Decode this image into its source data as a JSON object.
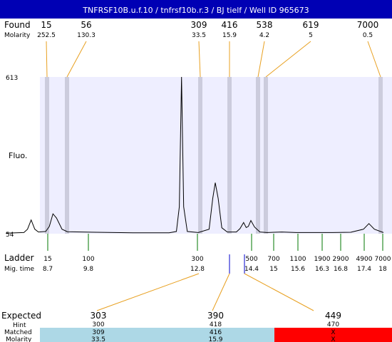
{
  "header": {
    "title": "TNFRSF10B.u.f.10 / tnfrsf10b.r.3 / BJ tielf / Well ID 965673"
  },
  "labels": {
    "found": "Found",
    "molarity": "Molarity",
    "fluo": "Fluo.",
    "ladder": "Ladder",
    "mig_time": "Mig. time",
    "expected": "Expected",
    "hint": "Hint",
    "matched": "Matched",
    "molarity_row": "Molarity"
  },
  "colors": {
    "header_bg": "#0000b4",
    "plot_bg": "#eeeeff",
    "peak_band": "#ccccdd",
    "trace": "#000000",
    "found_connector": "#e8a020",
    "ladder_tick": "#007700",
    "expected_connector": "#e8a020",
    "matched_ok": "#add8e6",
    "matched_fail": "#ff0000",
    "marker_blue": "#0000cc"
  },
  "chart_data": {
    "type": "line",
    "ylim": [
      54,
      613
    ],
    "y_ticks": [
      54,
      613
    ],
    "xlim": [
      8.0,
      18.4
    ],
    "found": [
      {
        "size": "15",
        "molarity": "252.5",
        "time": 8.7
      },
      {
        "size": "56",
        "molarity": "130.3",
        "time": 9.3
      },
      {
        "size": "309",
        "molarity": "33.5",
        "time": 12.85
      },
      {
        "size": "416",
        "molarity": "15.9",
        "time": 13.77
      },
      {
        "size": "538",
        "molarity": "4.2",
        "time": 14.55
      },
      {
        "size": "619",
        "molarity": "5",
        "time": 14.75
      },
      {
        "size": "7000",
        "molarity": "0.5",
        "time": 18.0
      }
    ],
    "ladder": [
      {
        "size": "15",
        "time": "8.7"
      },
      {
        "size": "100",
        "time": "9.8"
      },
      {
        "size": "300",
        "time": "12.8"
      },
      {
        "size": "500",
        "time": "14.4"
      },
      {
        "size": "700",
        "time": "15"
      },
      {
        "size": "1100",
        "time": "15.6"
      },
      {
        "size": "1900",
        "time": "16.3"
      },
      {
        "size": "2900",
        "time": "16.8"
      },
      {
        "size": "4900",
        "time": "17.4"
      },
      {
        "size": "7000",
        "time": "18"
      }
    ],
    "trace": [
      [
        8.0,
        56
      ],
      [
        8.5,
        58
      ],
      [
        8.6,
        70
      ],
      [
        8.7,
        103
      ],
      [
        8.8,
        70
      ],
      [
        8.9,
        60
      ],
      [
        9.1,
        62
      ],
      [
        9.2,
        80
      ],
      [
        9.3,
        125
      ],
      [
        9.4,
        110
      ],
      [
        9.55,
        70
      ],
      [
        9.7,
        61
      ],
      [
        10.5,
        59
      ],
      [
        11.5,
        57
      ],
      [
        12.5,
        57
      ],
      [
        12.7,
        62
      ],
      [
        12.78,
        150
      ],
      [
        12.84,
        613
      ],
      [
        12.9,
        150
      ],
      [
        13.0,
        62
      ],
      [
        13.3,
        58
      ],
      [
        13.6,
        70
      ],
      [
        13.7,
        180
      ],
      [
        13.77,
        236
      ],
      [
        13.85,
        180
      ],
      [
        13.95,
        75
      ],
      [
        14.1,
        60
      ],
      [
        14.35,
        60
      ],
      [
        14.45,
        72
      ],
      [
        14.55,
        94
      ],
      [
        14.62,
        76
      ],
      [
        14.68,
        80
      ],
      [
        14.75,
        101
      ],
      [
        14.85,
        78
      ],
      [
        15.0,
        60
      ],
      [
        15.2,
        58
      ],
      [
        15.6,
        60
      ],
      [
        16.0,
        58
      ],
      [
        16.5,
        58
      ],
      [
        17.0,
        58
      ],
      [
        17.5,
        59
      ],
      [
        17.85,
        70
      ],
      [
        18.0,
        90
      ],
      [
        18.15,
        70
      ],
      [
        18.4,
        58
      ]
    ],
    "expected": [
      {
        "expected": "303",
        "hint": "300",
        "matched": "309",
        "molarity": "33.5",
        "status": "ok"
      },
      {
        "expected": "390",
        "hint": "418",
        "matched": "416",
        "molarity": "15.9",
        "status": "ok"
      },
      {
        "expected": "449",
        "hint": "470",
        "matched": "X",
        "molarity": "X",
        "status": "fail"
      }
    ]
  }
}
